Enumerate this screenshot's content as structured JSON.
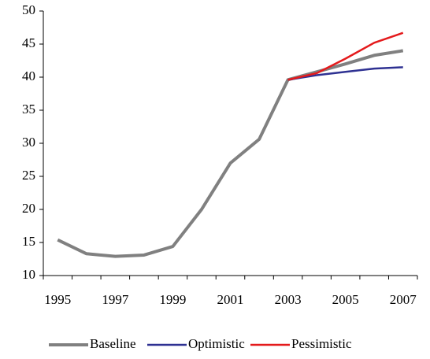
{
  "chart_data": {
    "type": "line",
    "categories": [
      "1995",
      null,
      "1997",
      null,
      "1999",
      null,
      "2001",
      null,
      "2003",
      null,
      "2005",
      null,
      "2007"
    ],
    "series": [
      {
        "name": "Baseline",
        "color": "#808080",
        "values": [
          15.4,
          13.3,
          12.9,
          13.1,
          14.4,
          20.0,
          27.0,
          30.6,
          39.6,
          40.8,
          42.0,
          43.3,
          44.0
        ]
      },
      {
        "name": "Optimistic",
        "color": "#2e3192",
        "values": [
          null,
          null,
          null,
          null,
          null,
          null,
          null,
          null,
          39.6,
          40.3,
          40.8,
          41.3,
          41.5
        ]
      },
      {
        "name": "Pessimistic",
        "color": "#e41a1c",
        "values": [
          null,
          null,
          null,
          null,
          null,
          null,
          null,
          null,
          39.6,
          40.6,
          42.8,
          45.2,
          46.7
        ]
      }
    ],
    "ylim": [
      10,
      50
    ],
    "yticks": [
      10,
      15,
      20,
      25,
      30,
      35,
      40,
      45,
      50
    ],
    "legend": "bottom"
  }
}
